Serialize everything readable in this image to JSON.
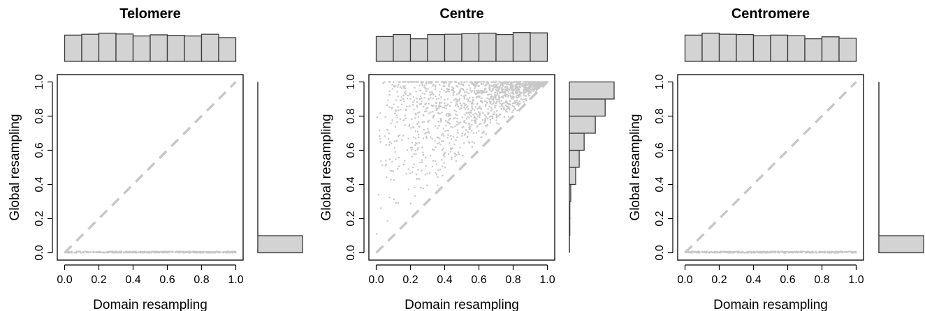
{
  "chart_data": [
    {
      "type": "scatter",
      "title": "Telomere",
      "xlabel": "Domain resampling",
      "ylabel": "Global resampling",
      "xlim": [
        0,
        1
      ],
      "ylim": [
        0,
        1
      ],
      "xticks": [
        "0.0",
        "0.2",
        "0.4",
        "0.6",
        "0.8",
        "1.0"
      ],
      "yticks": [
        "0.0",
        "0.2",
        "0.4",
        "0.6",
        "0.8",
        "1.0"
      ],
      "reference_line": "y = x (dashed, light grey)",
      "points_description": "nearly all points at y ≈ 0 across x from 0 to 1",
      "scatter_seed": 11,
      "points_n": 420,
      "top_histogram": {
        "bins": 10,
        "range": [
          0,
          1
        ],
        "heights": [
          0.93,
          0.96,
          1.0,
          0.97,
          0.9,
          0.94,
          0.92,
          0.9,
          0.96,
          0.84
        ]
      },
      "right_histogram": {
        "bins": 10,
        "range": [
          0,
          1
        ],
        "heights": [
          1.0,
          0.0,
          0.0,
          0.0,
          0.0,
          0.0,
          0.0,
          0.0,
          0.0,
          0.0
        ]
      },
      "colors": {
        "points": "#c8c8c8",
        "reference_line": "#c8c8c8",
        "hist_fill": "#d3d3d3"
      }
    },
    {
      "type": "scatter",
      "title": "Centre",
      "xlabel": "Domain resampling",
      "ylabel": "Global resampling",
      "xlim": [
        0,
        1
      ],
      "ylim": [
        0,
        1
      ],
      "xticks": [
        "0.0",
        "0.2",
        "0.4",
        "0.6",
        "0.8",
        "1.0"
      ],
      "yticks": [
        "0.0",
        "0.2",
        "0.4",
        "0.6",
        "0.8",
        "1.0"
      ],
      "reference_line": "y = x (dashed, light grey)",
      "points_description": "points lie above the y = x line, concentrated near (1, 1); y ranges roughly 0.1–1.0",
      "scatter_seed": 7,
      "points_n": 1500,
      "top_histogram": {
        "bins": 10,
        "range": [
          0,
          1
        ],
        "heights": [
          0.88,
          0.95,
          0.8,
          0.95,
          0.96,
          0.98,
          1.0,
          0.95,
          1.02,
          1.01
        ]
      },
      "right_histogram": {
        "bins": 10,
        "range": [
          0,
          1
        ],
        "heights": [
          0.0,
          0.01,
          0.01,
          0.03,
          0.14,
          0.22,
          0.33,
          0.58,
          0.8,
          1.0
        ]
      },
      "colors": {
        "points": "#c8c8c8",
        "reference_line": "#c8c8c8",
        "hist_fill": "#d3d3d3"
      }
    },
    {
      "type": "scatter",
      "title": "Centromere",
      "xlabel": "Domain resampling",
      "ylabel": "Global resampling",
      "xlim": [
        0,
        1
      ],
      "ylim": [
        0,
        1
      ],
      "xticks": [
        "0.0",
        "0.2",
        "0.4",
        "0.6",
        "0.8",
        "1.0"
      ],
      "yticks": [
        "0.0",
        "0.2",
        "0.4",
        "0.6",
        "0.8",
        "1.0"
      ],
      "reference_line": "y = x (dashed, light grey)",
      "points_description": "nearly all points at y ≈ 0 across x from 0 to 1",
      "scatter_seed": 23,
      "points_n": 420,
      "top_histogram": {
        "bins": 10,
        "range": [
          0,
          1
        ],
        "heights": [
          0.93,
          1.0,
          0.96,
          0.95,
          0.91,
          0.93,
          0.91,
          0.8,
          0.87,
          0.82
        ]
      },
      "right_histogram": {
        "bins": 10,
        "range": [
          0,
          1
        ],
        "heights": [
          1.0,
          0.0,
          0.0,
          0.0,
          0.0,
          0.0,
          0.0,
          0.0,
          0.0,
          0.0
        ]
      },
      "colors": {
        "points": "#c8c8c8",
        "reference_line": "#c8c8c8",
        "hist_fill": "#d3d3d3"
      }
    }
  ]
}
